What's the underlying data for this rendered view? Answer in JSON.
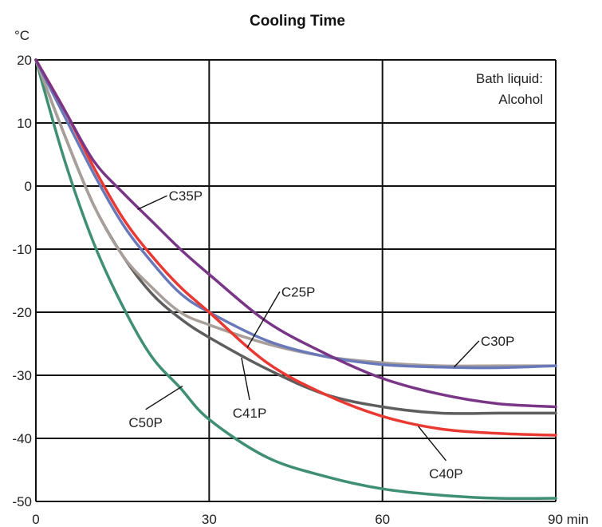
{
  "chart_data": {
    "type": "line",
    "title": "Cooling Time",
    "ylabel": "°C",
    "xlabel_unit": "min",
    "xlim": [
      0,
      90
    ],
    "ylim": [
      -50,
      20
    ],
    "x_ticks": [
      0,
      30,
      60,
      90
    ],
    "x_tick_labels": [
      "0",
      "30",
      "60",
      "90 min"
    ],
    "y_ticks": [
      20,
      10,
      0,
      -10,
      -20,
      -30,
      -40,
      -50
    ],
    "y_tick_labels": [
      "20",
      "10",
      "0",
      "-10",
      "-20",
      "-30",
      "-40",
      "-50"
    ],
    "grid": true,
    "annotation": [
      "Bath liquid:",
      "Alcohol"
    ],
    "series": [
      {
        "name": "C50P",
        "color": "#3f8f73",
        "x": [
          0,
          5,
          10,
          15,
          20,
          25,
          30,
          40,
          50,
          60,
          70,
          80,
          90
        ],
        "y": [
          20,
          4,
          -9,
          -19,
          -27,
          -32,
          -37,
          -43,
          -46,
          -48,
          -49,
          -49.5,
          -49.5
        ]
      },
      {
        "name": "C41P",
        "color": "#5e5e5e",
        "x": [
          0,
          5,
          10,
          15,
          20,
          25,
          30,
          40,
          50,
          60,
          70,
          80,
          90
        ],
        "y": [
          20,
          8,
          -3,
          -11,
          -17,
          -21,
          -24,
          -29,
          -33,
          -35,
          -36,
          -36,
          -36
        ]
      },
      {
        "name": "C25P",
        "color": "#a89f9a",
        "x": [
          0,
          5,
          10,
          15,
          20,
          25,
          30,
          40,
          50,
          60,
          70,
          80,
          90
        ],
        "y": [
          20,
          8,
          -3,
          -11,
          -16,
          -20,
          -22,
          -25,
          -27,
          -28,
          -28.5,
          -28.5,
          -28.5
        ]
      },
      {
        "name": "C30P",
        "color": "#6878b9",
        "x": [
          0,
          5,
          10,
          15,
          20,
          25,
          30,
          40,
          50,
          60,
          70,
          80,
          90
        ],
        "y": [
          20,
          11,
          2,
          -6,
          -12,
          -17,
          -20,
          -24.5,
          -27,
          -28.3,
          -28.7,
          -28.8,
          -28.5
        ]
      },
      {
        "name": "C40P",
        "color": "#e83a33",
        "x": [
          0,
          5,
          10,
          15,
          20,
          25,
          30,
          40,
          50,
          60,
          70,
          80,
          90
        ],
        "y": [
          20,
          12,
          3,
          -5,
          -11,
          -16,
          -20,
          -28,
          -33,
          -36.5,
          -38.5,
          -39.2,
          -39.5
        ]
      },
      {
        "name": "C35P",
        "color": "#7a3686",
        "x": [
          0,
          5,
          10,
          15,
          20,
          25,
          30,
          40,
          50,
          60,
          70,
          80,
          90
        ],
        "y": [
          20,
          12,
          4,
          -1,
          -5.5,
          -10,
          -14,
          -21.5,
          -26.5,
          -30.5,
          -33,
          -34.5,
          -35
        ]
      }
    ],
    "series_labels": [
      {
        "name": "C35P",
        "text": "C35P",
        "anchor_x": 17.6,
        "anchor_y": -3.7,
        "label_x": 23,
        "label_y": -2.3,
        "label_anchor": "start"
      },
      {
        "name": "C25P",
        "text": "C25P",
        "anchor_x": 36.6,
        "anchor_y": -25.6,
        "label_x": 42.5,
        "label_y": -17.5,
        "label_anchor": "start"
      },
      {
        "name": "C30P",
        "text": "C30P",
        "anchor_x": 72.4,
        "anchor_y": -28.7,
        "label_x": 77,
        "label_y": -25.3,
        "label_anchor": "start"
      },
      {
        "name": "C41P",
        "text": "C41P",
        "anchor_x": 35.6,
        "anchor_y": -27.2,
        "label_x": 37,
        "label_y": -36.7,
        "label_anchor": "middle"
      },
      {
        "name": "C50P",
        "text": "C50P",
        "anchor_x": 25.4,
        "anchor_y": -31.7,
        "label_x": 19,
        "label_y": -38.2,
        "label_anchor": "middle"
      },
      {
        "name": "C40P",
        "text": "C40P",
        "anchor_x": 66.2,
        "anchor_y": -38.1,
        "label_x": 71,
        "label_y": -46.3,
        "label_anchor": "middle"
      }
    ]
  }
}
